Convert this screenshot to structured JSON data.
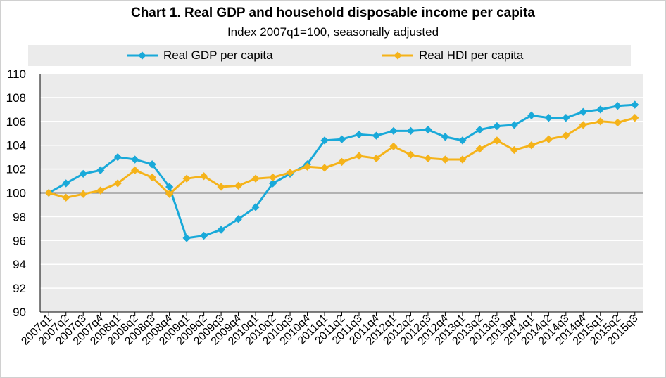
{
  "chart_data": {
    "type": "line",
    "title": "Chart 1. Real GDP and household disposable income per capita",
    "subtitle": "Index 2007q1=100, seasonally adjusted",
    "xlabel": "",
    "ylabel": "",
    "ylim": [
      90,
      110
    ],
    "yticks": [
      "90",
      "92",
      "94",
      "96",
      "98",
      "100",
      "102",
      "104",
      "106",
      "108",
      "110"
    ],
    "grid": true,
    "legend_position": "top",
    "reference_line": 100,
    "categories": [
      "2007q1",
      "2007q2",
      "2007q3",
      "2007q4",
      "2008q1",
      "2008q2",
      "2008q3",
      "2008q4",
      "2009q1",
      "2009q2",
      "2009q3",
      "2009q4",
      "2010q1",
      "2010q2",
      "2010q3",
      "2010q4",
      "2011q1",
      "2011q2",
      "2011q3",
      "2011q4",
      "2012q1",
      "2012q2",
      "2012q3",
      "2012q4",
      "2013q1",
      "2013q2",
      "2013q3",
      "2013q4",
      "2014q1",
      "2014q2",
      "2014q3",
      "2014q4",
      "2015q1",
      "2015q2",
      "2015q3"
    ],
    "series": [
      {
        "name": "Real GDP per capita",
        "color": "#19a9d9",
        "values": [
          100.0,
          100.8,
          101.6,
          101.9,
          103.0,
          102.8,
          102.4,
          100.5,
          96.2,
          96.4,
          96.9,
          97.8,
          98.8,
          100.8,
          101.6,
          102.4,
          104.4,
          104.5,
          104.9,
          104.8,
          105.2,
          105.2,
          105.3,
          104.7,
          104.4,
          105.3,
          105.6,
          105.7,
          106.5,
          106.3,
          106.3,
          106.8,
          107.0,
          107.3,
          107.4
        ]
      },
      {
        "name": "Real HDI per capita",
        "color": "#f5b31a",
        "values": [
          100.0,
          99.6,
          99.9,
          100.2,
          100.8,
          101.9,
          101.3,
          99.9,
          101.2,
          101.4,
          100.5,
          100.6,
          101.2,
          101.3,
          101.7,
          102.2,
          102.1,
          102.6,
          103.1,
          102.9,
          103.9,
          103.2,
          102.9,
          102.8,
          102.8,
          103.7,
          104.4,
          103.6,
          104.0,
          104.5,
          104.8,
          105.7,
          106.0,
          105.9,
          106.3
        ]
      }
    ]
  }
}
